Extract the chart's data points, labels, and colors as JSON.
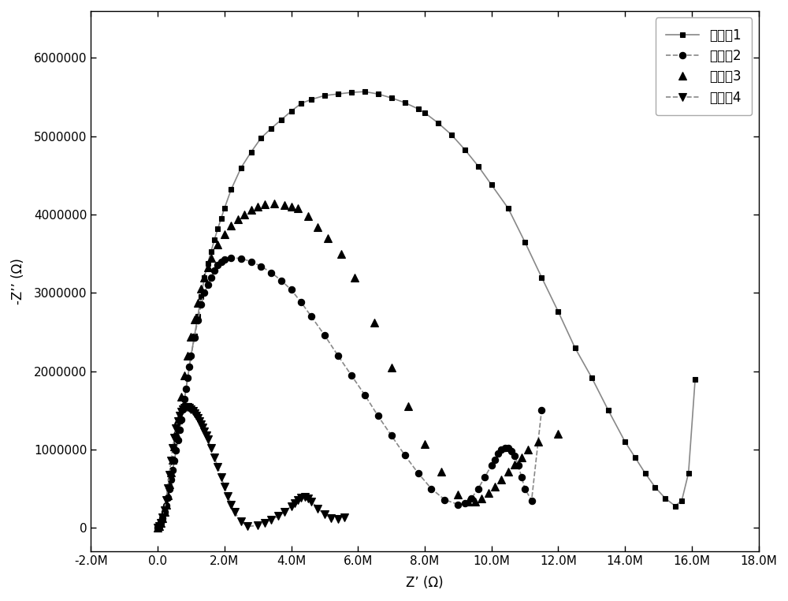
{
  "xlabel": "Z’ (Ω)",
  "ylabel": "-Z’’ (Ω)",
  "xlim": [
    -2000000,
    18000000
  ],
  "ylim": [
    -300000,
    6600000
  ],
  "xticks": [
    -2000000,
    0,
    2000000,
    4000000,
    6000000,
    8000000,
    10000000,
    12000000,
    14000000,
    16000000,
    18000000
  ],
  "xtick_labels": [
    "-2.0M",
    "0.0",
    "2.0M",
    "4.0M",
    "6.0M",
    "8.0M",
    "10.0M",
    "12.0M",
    "14.0M",
    "16.0M",
    "18.0M"
  ],
  "yticks": [
    0,
    1000000,
    2000000,
    3000000,
    4000000,
    5000000,
    6000000
  ],
  "ytick_labels": [
    "0",
    "1000000",
    "2000000",
    "3000000",
    "4000000",
    "5000000",
    "6000000"
  ],
  "legend_labels": [
    "实施例1",
    "实施例2",
    "实施例3",
    "实施例4"
  ],
  "s1_x": [
    0,
    50000,
    100000,
    150000,
    200000,
    250000,
    300000,
    350000,
    400000,
    450000,
    500000,
    550000,
    600000,
    650000,
    700000,
    750000,
    800000,
    850000,
    900000,
    950000,
    1000000,
    1100000,
    1200000,
    1300000,
    1400000,
    1500000,
    1600000,
    1700000,
    1800000,
    1900000,
    2000000,
    2200000,
    2500000,
    2800000,
    3100000,
    3400000,
    3700000,
    4000000,
    4300000,
    4600000,
    5000000,
    5400000,
    5800000,
    6200000,
    6600000,
    7000000,
    7400000,
    7800000,
    8000000,
    8400000,
    8800000,
    9200000,
    9600000,
    10000000,
    10500000,
    11000000,
    11500000,
    12000000,
    12500000,
    13000000,
    13500000,
    14000000,
    14300000,
    14600000,
    14900000,
    15200000,
    15500000,
    15700000,
    15900000,
    16100000
  ],
  "s1_y": [
    0,
    20000,
    60000,
    120000,
    200000,
    290000,
    390000,
    500000,
    620000,
    740000,
    860000,
    990000,
    1120000,
    1250000,
    1380000,
    1510000,
    1640000,
    1780000,
    1920000,
    2060000,
    2200000,
    2450000,
    2700000,
    2950000,
    3200000,
    3380000,
    3530000,
    3680000,
    3820000,
    3950000,
    4080000,
    4320000,
    4600000,
    4800000,
    4980000,
    5100000,
    5210000,
    5320000,
    5420000,
    5470000,
    5520000,
    5540000,
    5560000,
    5570000,
    5540000,
    5490000,
    5430000,
    5350000,
    5300000,
    5170000,
    5020000,
    4830000,
    4620000,
    4380000,
    4080000,
    3650000,
    3200000,
    2760000,
    2300000,
    1920000,
    1500000,
    1100000,
    900000,
    700000,
    520000,
    380000,
    280000,
    350000,
    700000,
    1900000
  ],
  "s2_x": [
    0,
    50000,
    100000,
    150000,
    200000,
    250000,
    300000,
    350000,
    400000,
    450000,
    500000,
    550000,
    600000,
    650000,
    700000,
    750000,
    800000,
    850000,
    900000,
    950000,
    1000000,
    1100000,
    1200000,
    1300000,
    1400000,
    1500000,
    1600000,
    1700000,
    1800000,
    1900000,
    2000000,
    2200000,
    2500000,
    2800000,
    3100000,
    3400000,
    3700000,
    4000000,
    4300000,
    4600000,
    5000000,
    5400000,
    5800000,
    6200000,
    6600000,
    7000000,
    7400000,
    7800000,
    8200000,
    8600000,
    9000000,
    9200000,
    9400000,
    9600000,
    9800000,
    10000000,
    10100000,
    10200000,
    10300000,
    10400000,
    10500000,
    10600000,
    10700000,
    10800000,
    10900000,
    11000000,
    11200000,
    11500000
  ],
  "s2_y": [
    0,
    20000,
    60000,
    120000,
    200000,
    290000,
    390000,
    500000,
    620000,
    740000,
    860000,
    990000,
    1120000,
    1250000,
    1380000,
    1510000,
    1640000,
    1780000,
    1920000,
    2060000,
    2200000,
    2430000,
    2650000,
    2850000,
    3000000,
    3100000,
    3200000,
    3290000,
    3360000,
    3400000,
    3430000,
    3450000,
    3440000,
    3400000,
    3340000,
    3260000,
    3160000,
    3040000,
    2880000,
    2700000,
    2460000,
    2200000,
    1950000,
    1700000,
    1430000,
    1180000,
    930000,
    700000,
    500000,
    360000,
    300000,
    320000,
    380000,
    500000,
    650000,
    800000,
    870000,
    950000,
    1000000,
    1020000,
    1020000,
    980000,
    920000,
    800000,
    650000,
    500000,
    350000,
    1500000
  ],
  "s3_x": [
    0,
    50000,
    100000,
    150000,
    200000,
    250000,
    300000,
    350000,
    400000,
    450000,
    500000,
    550000,
    600000,
    700000,
    800000,
    900000,
    1000000,
    1100000,
    1200000,
    1300000,
    1400000,
    1500000,
    1600000,
    1800000,
    2000000,
    2200000,
    2400000,
    2600000,
    2800000,
    3000000,
    3200000,
    3500000,
    3800000,
    4000000,
    4200000,
    4500000,
    4800000,
    5100000,
    5500000,
    5900000,
    6500000,
    7000000,
    7500000,
    8000000,
    8500000,
    9000000,
    9300000,
    9500000,
    9700000,
    9900000,
    10100000,
    10300000,
    10500000,
    10700000,
    10900000,
    11100000,
    11400000,
    12000000
  ],
  "s3_y": [
    0,
    20000,
    60000,
    120000,
    200000,
    300000,
    420000,
    560000,
    710000,
    870000,
    1040000,
    1210000,
    1380000,
    1680000,
    1950000,
    2200000,
    2440000,
    2660000,
    2870000,
    3050000,
    3200000,
    3330000,
    3450000,
    3620000,
    3750000,
    3860000,
    3940000,
    4000000,
    4060000,
    4100000,
    4130000,
    4140000,
    4120000,
    4100000,
    4080000,
    3980000,
    3840000,
    3700000,
    3500000,
    3200000,
    2620000,
    2050000,
    1550000,
    1070000,
    720000,
    430000,
    340000,
    340000,
    380000,
    450000,
    530000,
    620000,
    720000,
    810000,
    900000,
    1000000,
    1100000,
    1200000
  ],
  "s4_x": [
    0,
    50000,
    100000,
    150000,
    200000,
    250000,
    300000,
    350000,
    400000,
    450000,
    500000,
    550000,
    600000,
    650000,
    700000,
    750000,
    800000,
    850000,
    900000,
    950000,
    1000000,
    1050000,
    1100000,
    1150000,
    1200000,
    1250000,
    1300000,
    1350000,
    1400000,
    1450000,
    1500000,
    1600000,
    1700000,
    1800000,
    1900000,
    2000000,
    2100000,
    2200000,
    2300000,
    2500000,
    2700000,
    3000000,
    3200000,
    3400000,
    3600000,
    3800000,
    4000000,
    4100000,
    4200000,
    4300000,
    4400000,
    4500000,
    4600000,
    4800000,
    5000000,
    5200000,
    5400000,
    5600000
  ],
  "s4_y": [
    0,
    20000,
    60000,
    130000,
    230000,
    360000,
    510000,
    680000,
    860000,
    1020000,
    1150000,
    1270000,
    1360000,
    1430000,
    1480000,
    1510000,
    1530000,
    1540000,
    1540000,
    1530000,
    1510000,
    1490000,
    1460000,
    1430000,
    1400000,
    1360000,
    1320000,
    1280000,
    1230000,
    1180000,
    1130000,
    1020000,
    900000,
    780000,
    650000,
    530000,
    410000,
    300000,
    200000,
    80000,
    20000,
    30000,
    60000,
    100000,
    150000,
    200000,
    280000,
    320000,
    360000,
    390000,
    400000,
    380000,
    340000,
    250000,
    170000,
    120000,
    110000,
    130000
  ],
  "line_color": "#888888",
  "marker_color": "#000000",
  "bg_color": "#ffffff"
}
